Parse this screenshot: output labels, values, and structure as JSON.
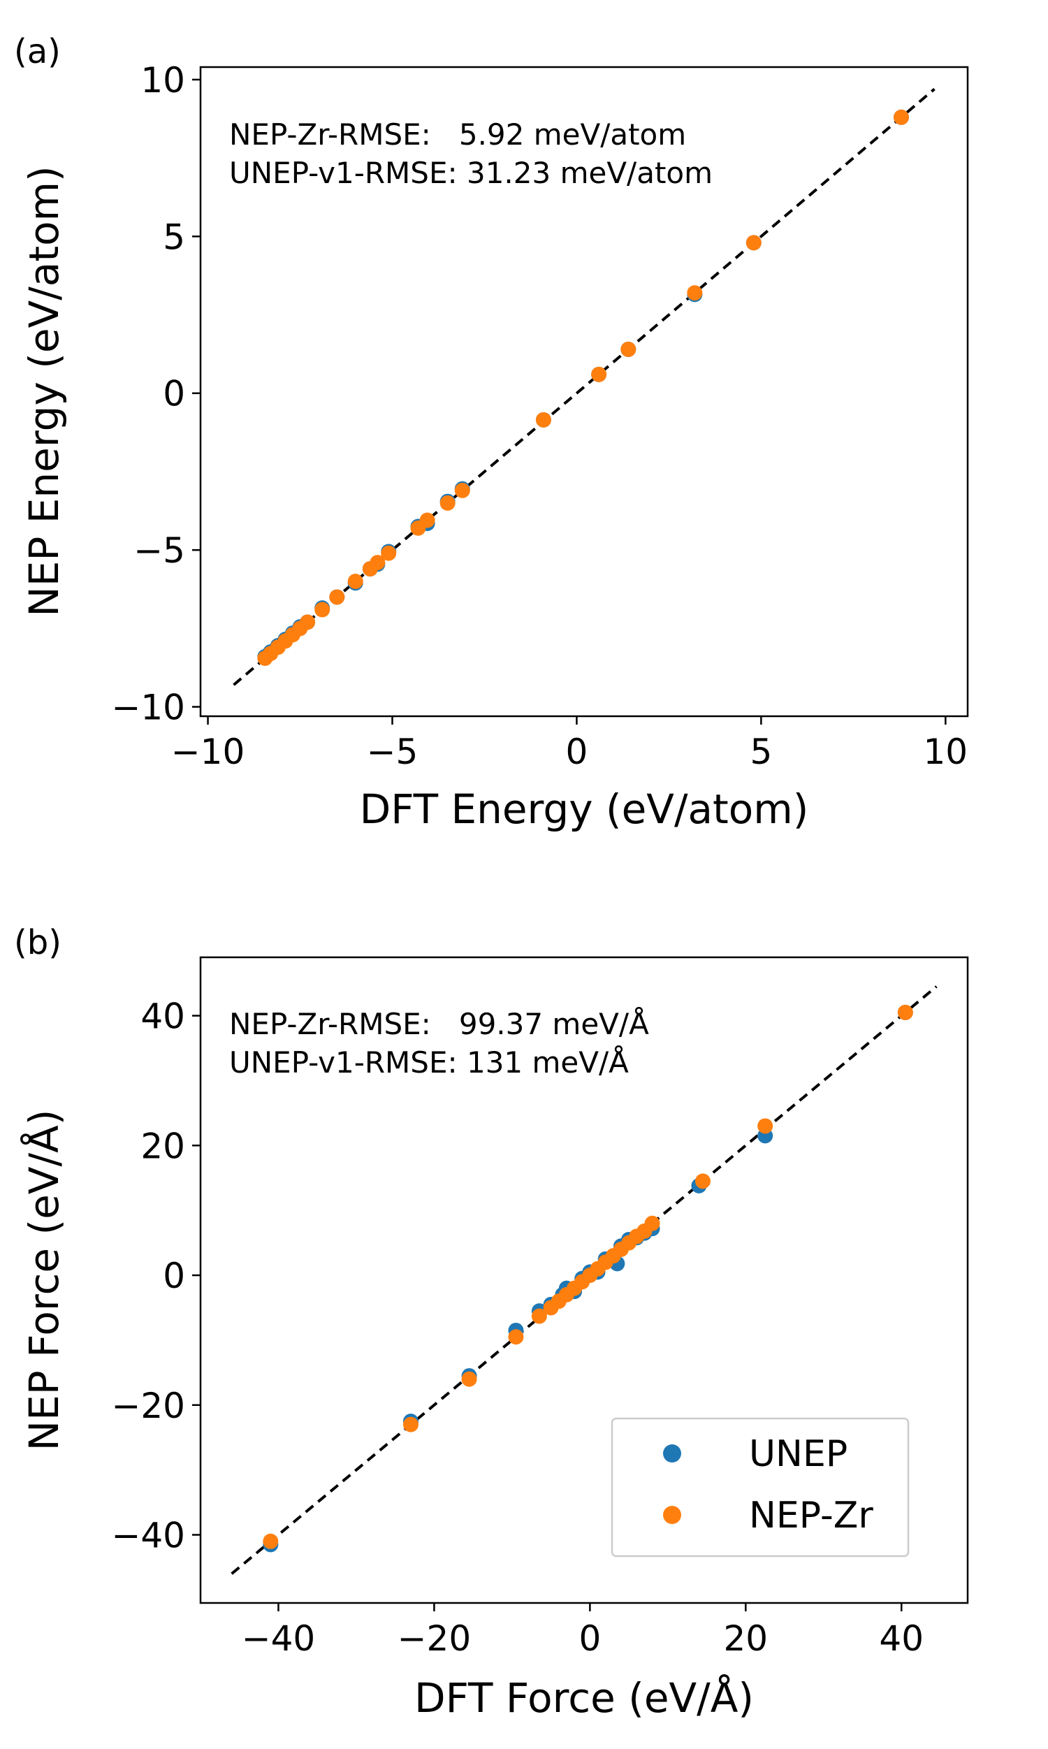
{
  "chart_data": [
    {
      "type": "scatter",
      "panel_label": "(a)",
      "xlabel": "DFT Energy (eV/atom)",
      "ylabel": "NEP Energy (eV/atom)",
      "xlim": [
        -10.2,
        10.6
      ],
      "ylim": [
        -10.3,
        10.4
      ],
      "xticks": [
        -10,
        -5,
        0,
        5,
        10
      ],
      "yticks": [
        -10,
        -5,
        0,
        5,
        10
      ],
      "xtick_labels": [
        "−10",
        "−5",
        "0",
        "5",
        "10"
      ],
      "ytick_labels": [
        "−10",
        "−5",
        "0",
        "5",
        "10"
      ],
      "annotations": [
        "NEP-Zr-RMSE:   5.92 meV/atom",
        "UNEP-v1-RMSE: 31.23 meV/atom"
      ],
      "reference_line": {
        "style": "dashed",
        "from": [
          -9.3,
          -9.3
        ],
        "to": [
          9.7,
          9.7
        ]
      },
      "series": [
        {
          "name": "UNEP",
          "color": "#1f77b4",
          "points": [
            [
              -8.45,
              -8.4
            ],
            [
              -8.3,
              -8.25
            ],
            [
              -8.1,
              -8.05
            ],
            [
              -7.9,
              -7.85
            ],
            [
              -7.7,
              -7.65
            ],
            [
              -7.5,
              -7.45
            ],
            [
              -7.3,
              -7.3
            ],
            [
              -6.9,
              -6.85
            ],
            [
              -6.5,
              -6.5
            ],
            [
              -6.0,
              -6.05
            ],
            [
              -5.6,
              -5.6
            ],
            [
              -5.4,
              -5.45
            ],
            [
              -5.1,
              -5.05
            ],
            [
              -4.3,
              -4.25
            ],
            [
              -4.05,
              -4.15
            ],
            [
              -3.5,
              -3.45
            ],
            [
              -3.1,
              -3.05
            ],
            [
              -0.9,
              -0.85
            ],
            [
              0.6,
              0.6
            ],
            [
              1.4,
              1.4
            ],
            [
              3.2,
              3.15
            ],
            [
              4.8,
              4.8
            ],
            [
              8.8,
              8.8
            ]
          ]
        },
        {
          "name": "NEP-Zr",
          "color": "#ff7f0e",
          "points": [
            [
              -8.45,
              -8.45
            ],
            [
              -8.3,
              -8.3
            ],
            [
              -8.1,
              -8.1
            ],
            [
              -7.9,
              -7.9
            ],
            [
              -7.7,
              -7.7
            ],
            [
              -7.5,
              -7.5
            ],
            [
              -7.3,
              -7.3
            ],
            [
              -6.9,
              -6.9
            ],
            [
              -6.5,
              -6.5
            ],
            [
              -6.0,
              -6.0
            ],
            [
              -5.6,
              -5.6
            ],
            [
              -5.4,
              -5.4
            ],
            [
              -5.1,
              -5.1
            ],
            [
              -4.3,
              -4.3
            ],
            [
              -4.05,
              -4.05
            ],
            [
              -3.5,
              -3.5
            ],
            [
              -3.1,
              -3.1
            ],
            [
              -0.9,
              -0.85
            ],
            [
              0.6,
              0.6
            ],
            [
              1.4,
              1.4
            ],
            [
              3.2,
              3.2
            ],
            [
              4.8,
              4.8
            ],
            [
              8.8,
              8.8
            ]
          ]
        }
      ]
    },
    {
      "type": "scatter",
      "panel_label": "(b)",
      "xlabel": "DFT Force (eV/Å)",
      "ylabel": "NEP Force (eV/Å)",
      "xlim": [
        -50,
        48.5
      ],
      "ylim": [
        -50.5,
        49
      ],
      "xticks": [
        -40,
        -20,
        0,
        20,
        40
      ],
      "yticks": [
        -40,
        -20,
        0,
        20,
        40
      ],
      "xtick_labels": [
        "−40",
        "−20",
        "0",
        "20",
        "40"
      ],
      "ytick_labels": [
        "−40",
        "−20",
        "0",
        "20",
        "40"
      ],
      "annotations": [
        "NEP-Zr-RMSE:   99.37 meV/Å",
        "UNEP-v1-RMSE: 131 meV/Å"
      ],
      "reference_line": {
        "style": "dashed",
        "from": [
          -46,
          -46
        ],
        "to": [
          44.5,
          44.5
        ]
      },
      "legend": {
        "placement": "lower-right",
        "entries": [
          "UNEP",
          "NEP-Zr"
        ]
      },
      "series": [
        {
          "name": "UNEP",
          "color": "#1f77b4",
          "points": [
            [
              -41,
              -41.5
            ],
            [
              -23,
              -22.5
            ],
            [
              -15.5,
              -15.5
            ],
            [
              -9.5,
              -8.5
            ],
            [
              -6.5,
              -5.5
            ],
            [
              -5,
              -4.5
            ],
            [
              -3.5,
              -3
            ],
            [
              -3,
              -2
            ],
            [
              -2,
              -2.5
            ],
            [
              -1,
              -0.5
            ],
            [
              0,
              0.5
            ],
            [
              1,
              0.5
            ],
            [
              2,
              2.5
            ],
            [
              3,
              2.5
            ],
            [
              3.5,
              1.8
            ],
            [
              4,
              4.5
            ],
            [
              5,
              5.5
            ],
            [
              6,
              5.8
            ],
            [
              7,
              6.5
            ],
            [
              8,
              7.2
            ],
            [
              14,
              13.8
            ],
            [
              22.5,
              21.5
            ],
            [
              40.5,
              40.5
            ]
          ]
        },
        {
          "name": "NEP-Zr",
          "color": "#ff7f0e",
          "points": [
            [
              -41,
              -41
            ],
            [
              -23,
              -23
            ],
            [
              -15.5,
              -16
            ],
            [
              -9.5,
              -9.5
            ],
            [
              -6.5,
              -6.3
            ],
            [
              -5,
              -5
            ],
            [
              -4,
              -4
            ],
            [
              -3,
              -3
            ],
            [
              -2,
              -2
            ],
            [
              -1,
              -1
            ],
            [
              0,
              0
            ],
            [
              1,
              1
            ],
            [
              2,
              2
            ],
            [
              3,
              3
            ],
            [
              4,
              4
            ],
            [
              5,
              5
            ],
            [
              6,
              6
            ],
            [
              7,
              6.8
            ],
            [
              8,
              8
            ],
            [
              14.5,
              14.5
            ],
            [
              22.5,
              23
            ],
            [
              40.5,
              40.5
            ]
          ]
        }
      ]
    }
  ]
}
